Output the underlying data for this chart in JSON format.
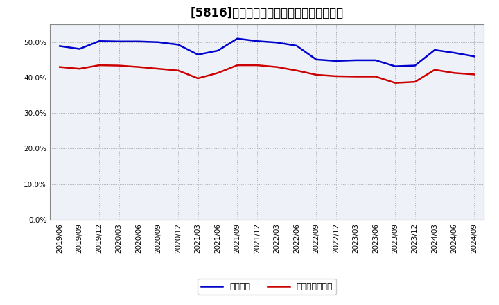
{
  "title": "[5816]　固定比率、固定長期適合率の推移",
  "blue_label": "固定比率",
  "red_label": "固定長期適合率",
  "x_labels": [
    "2019/06",
    "2019/09",
    "2019/12",
    "2020/03",
    "2020/06",
    "2020/09",
    "2020/12",
    "2021/03",
    "2021/06",
    "2021/09",
    "2021/12",
    "2022/03",
    "2022/06",
    "2022/09",
    "2022/12",
    "2023/03",
    "2023/06",
    "2023/09",
    "2023/12",
    "2024/03",
    "2024/06",
    "2024/09"
  ],
  "blue_values": [
    0.489,
    0.481,
    0.503,
    0.502,
    0.502,
    0.5,
    0.493,
    0.465,
    0.476,
    0.51,
    0.503,
    0.499,
    0.49,
    0.451,
    0.447,
    0.449,
    0.449,
    0.432,
    0.434,
    0.478,
    0.47,
    0.46
  ],
  "red_values": [
    0.43,
    0.425,
    0.435,
    0.434,
    0.43,
    0.425,
    0.42,
    0.398,
    0.413,
    0.435,
    0.435,
    0.43,
    0.42,
    0.408,
    0.404,
    0.403,
    0.403,
    0.385,
    0.388,
    0.422,
    0.413,
    0.409
  ],
  "ylim": [
    0.0,
    0.55
  ],
  "yticks": [
    0.0,
    0.1,
    0.2,
    0.3,
    0.4,
    0.5
  ],
  "blue_color": "#0000cc",
  "red_color": "#cc0000",
  "bg_color": "#ffffff",
  "plot_bg_color": "#eef2f8",
  "grid_color": "#aaaaaa",
  "title_fontsize": 12,
  "legend_fontsize": 9,
  "tick_fontsize": 7.5
}
